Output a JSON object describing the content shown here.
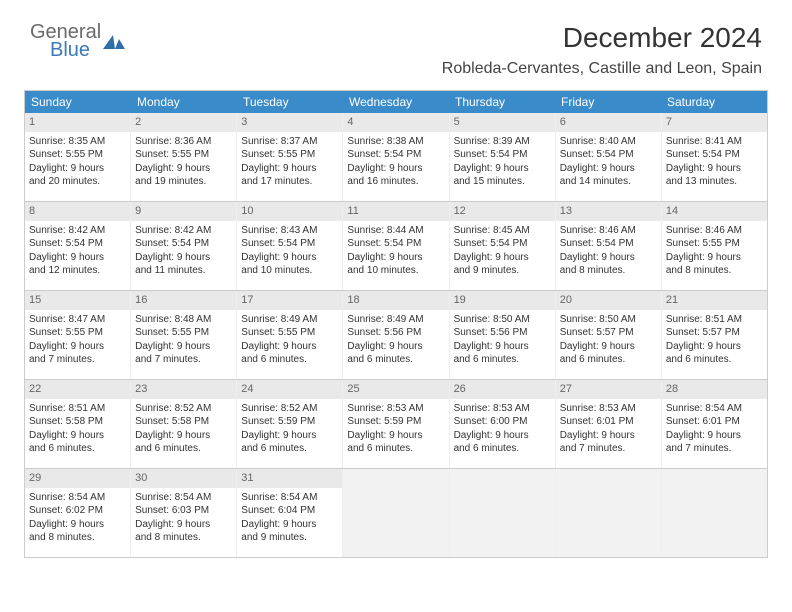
{
  "logo": {
    "text1": "General",
    "text2": "Blue",
    "color1": "#6a6a6a",
    "color2": "#3a7ab8",
    "mark_color": "#2f6fa8"
  },
  "title": "December 2024",
  "subtitle": "Robleda-Cervantes, Castille and Leon, Spain",
  "colors": {
    "header_bg": "#3a8bc9",
    "header_text": "#ffffff",
    "daynum_bg": "#e9e9e9",
    "daynum_text": "#666666",
    "cell_text": "#333333",
    "border": "#cccccc",
    "empty_bg": "#f2f2f2"
  },
  "daysOfWeek": [
    "Sunday",
    "Monday",
    "Tuesday",
    "Wednesday",
    "Thursday",
    "Friday",
    "Saturday"
  ],
  "weeks": [
    [
      {
        "num": "1",
        "sunrise": "Sunrise: 8:35 AM",
        "sunset": "Sunset: 5:55 PM",
        "d1": "Daylight: 9 hours",
        "d2": "and 20 minutes."
      },
      {
        "num": "2",
        "sunrise": "Sunrise: 8:36 AM",
        "sunset": "Sunset: 5:55 PM",
        "d1": "Daylight: 9 hours",
        "d2": "and 19 minutes."
      },
      {
        "num": "3",
        "sunrise": "Sunrise: 8:37 AM",
        "sunset": "Sunset: 5:55 PM",
        "d1": "Daylight: 9 hours",
        "d2": "and 17 minutes."
      },
      {
        "num": "4",
        "sunrise": "Sunrise: 8:38 AM",
        "sunset": "Sunset: 5:54 PM",
        "d1": "Daylight: 9 hours",
        "d2": "and 16 minutes."
      },
      {
        "num": "5",
        "sunrise": "Sunrise: 8:39 AM",
        "sunset": "Sunset: 5:54 PM",
        "d1": "Daylight: 9 hours",
        "d2": "and 15 minutes."
      },
      {
        "num": "6",
        "sunrise": "Sunrise: 8:40 AM",
        "sunset": "Sunset: 5:54 PM",
        "d1": "Daylight: 9 hours",
        "d2": "and 14 minutes."
      },
      {
        "num": "7",
        "sunrise": "Sunrise: 8:41 AM",
        "sunset": "Sunset: 5:54 PM",
        "d1": "Daylight: 9 hours",
        "d2": "and 13 minutes."
      }
    ],
    [
      {
        "num": "8",
        "sunrise": "Sunrise: 8:42 AM",
        "sunset": "Sunset: 5:54 PM",
        "d1": "Daylight: 9 hours",
        "d2": "and 12 minutes."
      },
      {
        "num": "9",
        "sunrise": "Sunrise: 8:42 AM",
        "sunset": "Sunset: 5:54 PM",
        "d1": "Daylight: 9 hours",
        "d2": "and 11 minutes."
      },
      {
        "num": "10",
        "sunrise": "Sunrise: 8:43 AM",
        "sunset": "Sunset: 5:54 PM",
        "d1": "Daylight: 9 hours",
        "d2": "and 10 minutes."
      },
      {
        "num": "11",
        "sunrise": "Sunrise: 8:44 AM",
        "sunset": "Sunset: 5:54 PM",
        "d1": "Daylight: 9 hours",
        "d2": "and 10 minutes."
      },
      {
        "num": "12",
        "sunrise": "Sunrise: 8:45 AM",
        "sunset": "Sunset: 5:54 PM",
        "d1": "Daylight: 9 hours",
        "d2": "and 9 minutes."
      },
      {
        "num": "13",
        "sunrise": "Sunrise: 8:46 AM",
        "sunset": "Sunset: 5:54 PM",
        "d1": "Daylight: 9 hours",
        "d2": "and 8 minutes."
      },
      {
        "num": "14",
        "sunrise": "Sunrise: 8:46 AM",
        "sunset": "Sunset: 5:55 PM",
        "d1": "Daylight: 9 hours",
        "d2": "and 8 minutes."
      }
    ],
    [
      {
        "num": "15",
        "sunrise": "Sunrise: 8:47 AM",
        "sunset": "Sunset: 5:55 PM",
        "d1": "Daylight: 9 hours",
        "d2": "and 7 minutes."
      },
      {
        "num": "16",
        "sunrise": "Sunrise: 8:48 AM",
        "sunset": "Sunset: 5:55 PM",
        "d1": "Daylight: 9 hours",
        "d2": "and 7 minutes."
      },
      {
        "num": "17",
        "sunrise": "Sunrise: 8:49 AM",
        "sunset": "Sunset: 5:55 PM",
        "d1": "Daylight: 9 hours",
        "d2": "and 6 minutes."
      },
      {
        "num": "18",
        "sunrise": "Sunrise: 8:49 AM",
        "sunset": "Sunset: 5:56 PM",
        "d1": "Daylight: 9 hours",
        "d2": "and 6 minutes."
      },
      {
        "num": "19",
        "sunrise": "Sunrise: 8:50 AM",
        "sunset": "Sunset: 5:56 PM",
        "d1": "Daylight: 9 hours",
        "d2": "and 6 minutes."
      },
      {
        "num": "20",
        "sunrise": "Sunrise: 8:50 AM",
        "sunset": "Sunset: 5:57 PM",
        "d1": "Daylight: 9 hours",
        "d2": "and 6 minutes."
      },
      {
        "num": "21",
        "sunrise": "Sunrise: 8:51 AM",
        "sunset": "Sunset: 5:57 PM",
        "d1": "Daylight: 9 hours",
        "d2": "and 6 minutes."
      }
    ],
    [
      {
        "num": "22",
        "sunrise": "Sunrise: 8:51 AM",
        "sunset": "Sunset: 5:58 PM",
        "d1": "Daylight: 9 hours",
        "d2": "and 6 minutes."
      },
      {
        "num": "23",
        "sunrise": "Sunrise: 8:52 AM",
        "sunset": "Sunset: 5:58 PM",
        "d1": "Daylight: 9 hours",
        "d2": "and 6 minutes."
      },
      {
        "num": "24",
        "sunrise": "Sunrise: 8:52 AM",
        "sunset": "Sunset: 5:59 PM",
        "d1": "Daylight: 9 hours",
        "d2": "and 6 minutes."
      },
      {
        "num": "25",
        "sunrise": "Sunrise: 8:53 AM",
        "sunset": "Sunset: 5:59 PM",
        "d1": "Daylight: 9 hours",
        "d2": "and 6 minutes."
      },
      {
        "num": "26",
        "sunrise": "Sunrise: 8:53 AM",
        "sunset": "Sunset: 6:00 PM",
        "d1": "Daylight: 9 hours",
        "d2": "and 6 minutes."
      },
      {
        "num": "27",
        "sunrise": "Sunrise: 8:53 AM",
        "sunset": "Sunset: 6:01 PM",
        "d1": "Daylight: 9 hours",
        "d2": "and 7 minutes."
      },
      {
        "num": "28",
        "sunrise": "Sunrise: 8:54 AM",
        "sunset": "Sunset: 6:01 PM",
        "d1": "Daylight: 9 hours",
        "d2": "and 7 minutes."
      }
    ],
    [
      {
        "num": "29",
        "sunrise": "Sunrise: 8:54 AM",
        "sunset": "Sunset: 6:02 PM",
        "d1": "Daylight: 9 hours",
        "d2": "and 8 minutes."
      },
      {
        "num": "30",
        "sunrise": "Sunrise: 8:54 AM",
        "sunset": "Sunset: 6:03 PM",
        "d1": "Daylight: 9 hours",
        "d2": "and 8 minutes."
      },
      {
        "num": "31",
        "sunrise": "Sunrise: 8:54 AM",
        "sunset": "Sunset: 6:04 PM",
        "d1": "Daylight: 9 hours",
        "d2": "and 9 minutes."
      },
      null,
      null,
      null,
      null
    ]
  ]
}
